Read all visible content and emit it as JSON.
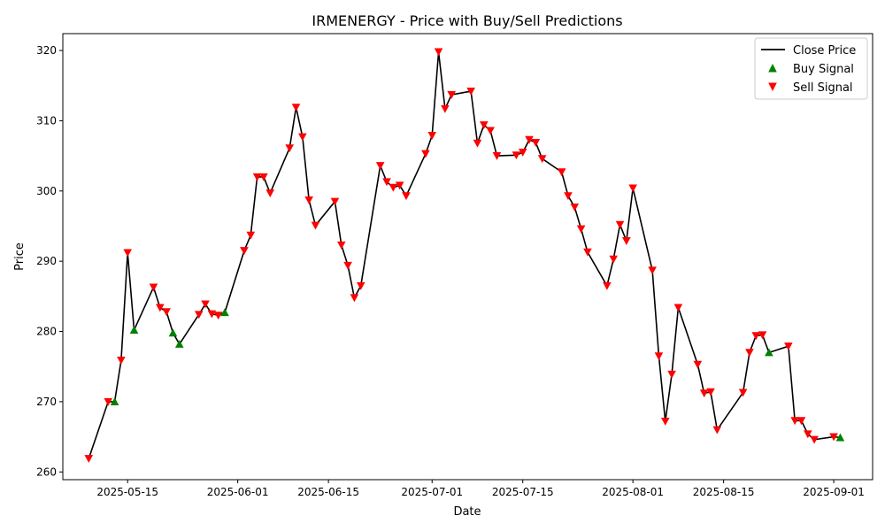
{
  "chart_data": {
    "type": "line",
    "title": "IRMENERGY - Price with Buy/Sell Predictions",
    "xlabel": "Date",
    "ylabel": "Price",
    "x_ticks": [
      "2025-05-15",
      "2025-06-01",
      "2025-06-15",
      "2025-07-01",
      "2025-07-15",
      "2025-08-01",
      "2025-08-15",
      "2025-09-01"
    ],
    "y_ticks": [
      260,
      270,
      280,
      290,
      300,
      310,
      320
    ],
    "ylim": [
      258.9,
      322.4
    ],
    "xlim": [
      "2025-05-05",
      "2025-09-07"
    ],
    "grid": false,
    "legend_position": "top-right",
    "colors": {
      "line": "#000000",
      "buy": "#008000",
      "sell": "#ff0000"
    },
    "series": [
      {
        "name": "Close Price",
        "kind": "line",
        "points": [
          [
            "2025-05-09",
            261.9
          ],
          [
            "2025-05-12",
            270.0
          ],
          [
            "2025-05-13",
            270.0
          ],
          [
            "2025-05-14",
            275.9
          ],
          [
            "2025-05-15",
            291.2
          ],
          [
            "2025-05-16",
            280.2
          ],
          [
            "2025-05-19",
            286.3
          ],
          [
            "2025-05-20",
            283.4
          ],
          [
            "2025-05-21",
            282.8
          ],
          [
            "2025-05-22",
            279.8
          ],
          [
            "2025-05-23",
            278.2
          ],
          [
            "2025-05-26",
            282.4
          ],
          [
            "2025-05-27",
            283.9
          ],
          [
            "2025-05-28",
            282.5
          ],
          [
            "2025-05-29",
            282.3
          ],
          [
            "2025-05-30",
            282.7
          ],
          [
            "2025-06-02",
            291.5
          ],
          [
            "2025-06-03",
            293.7
          ],
          [
            "2025-06-04",
            302.0
          ],
          [
            "2025-06-05",
            302.0
          ],
          [
            "2025-06-06",
            299.7
          ],
          [
            "2025-06-09",
            306.1
          ],
          [
            "2025-06-10",
            311.9
          ],
          [
            "2025-06-11",
            307.7
          ],
          [
            "2025-06-12",
            298.7
          ],
          [
            "2025-06-13",
            295.1
          ],
          [
            "2025-06-16",
            298.5
          ],
          [
            "2025-06-17",
            292.3
          ],
          [
            "2025-06-18",
            289.4
          ],
          [
            "2025-06-19",
            284.8
          ],
          [
            "2025-06-20",
            286.5
          ],
          [
            "2025-06-23",
            303.6
          ],
          [
            "2025-06-24",
            301.3
          ],
          [
            "2025-06-25",
            300.5
          ],
          [
            "2025-06-26",
            300.8
          ],
          [
            "2025-06-27",
            299.3
          ],
          [
            "2025-06-30",
            305.3
          ],
          [
            "2025-07-01",
            307.9
          ],
          [
            "2025-07-02",
            319.8
          ],
          [
            "2025-07-03",
            311.7
          ],
          [
            "2025-07-04",
            313.7
          ],
          [
            "2025-07-07",
            314.2
          ],
          [
            "2025-07-08",
            306.8
          ],
          [
            "2025-07-09",
            309.4
          ],
          [
            "2025-07-10",
            308.6
          ],
          [
            "2025-07-11",
            305.0
          ],
          [
            "2025-07-14",
            305.1
          ],
          [
            "2025-07-15",
            305.5
          ],
          [
            "2025-07-16",
            307.3
          ],
          [
            "2025-07-17",
            306.9
          ],
          [
            "2025-07-18",
            304.6
          ],
          [
            "2025-07-21",
            302.7
          ],
          [
            "2025-07-22",
            299.3
          ],
          [
            "2025-07-23",
            297.7
          ],
          [
            "2025-07-24",
            294.6
          ],
          [
            "2025-07-25",
            291.3
          ],
          [
            "2025-07-28",
            286.5
          ],
          [
            "2025-07-29",
            290.3
          ],
          [
            "2025-07-30",
            295.2
          ],
          [
            "2025-07-31",
            292.9
          ],
          [
            "2025-08-01",
            300.4
          ],
          [
            "2025-08-04",
            288.7
          ],
          [
            "2025-08-05",
            276.5
          ],
          [
            "2025-08-06",
            267.2
          ],
          [
            "2025-08-07",
            273.9
          ],
          [
            "2025-08-08",
            283.4
          ],
          [
            "2025-08-11",
            275.3
          ],
          [
            "2025-08-12",
            271.2
          ],
          [
            "2025-08-13",
            271.4
          ],
          [
            "2025-08-14",
            266.0
          ],
          [
            "2025-08-18",
            271.3
          ],
          [
            "2025-08-19",
            277.0
          ],
          [
            "2025-08-20",
            279.4
          ],
          [
            "2025-08-21",
            279.5
          ],
          [
            "2025-08-22",
            277.0
          ],
          [
            "2025-08-25",
            277.9
          ],
          [
            "2025-08-26",
            267.3
          ],
          [
            "2025-08-27",
            267.3
          ],
          [
            "2025-08-28",
            265.4
          ],
          [
            "2025-08-29",
            264.6
          ],
          [
            "2025-09-01",
            265.0
          ],
          [
            "2025-09-02",
            264.9
          ]
        ]
      },
      {
        "name": "Buy Signal",
        "kind": "scatter",
        "marker": "triangle-up",
        "points": [
          [
            "2025-05-13",
            270.0
          ],
          [
            "2025-05-16",
            280.2
          ],
          [
            "2025-05-22",
            279.8
          ],
          [
            "2025-05-23",
            278.2
          ],
          [
            "2025-05-30",
            282.7
          ],
          [
            "2025-08-22",
            277.0
          ],
          [
            "2025-09-02",
            264.9
          ]
        ]
      },
      {
        "name": "Sell Signal",
        "kind": "scatter",
        "marker": "triangle-down",
        "points": [
          [
            "2025-05-09",
            261.9
          ],
          [
            "2025-05-12",
            270.0
          ],
          [
            "2025-05-14",
            275.9
          ],
          [
            "2025-05-15",
            291.2
          ],
          [
            "2025-05-19",
            286.3
          ],
          [
            "2025-05-20",
            283.4
          ],
          [
            "2025-05-21",
            282.8
          ],
          [
            "2025-05-26",
            282.4
          ],
          [
            "2025-05-27",
            283.9
          ],
          [
            "2025-05-28",
            282.5
          ],
          [
            "2025-05-29",
            282.3
          ],
          [
            "2025-06-02",
            291.5
          ],
          [
            "2025-06-03",
            293.7
          ],
          [
            "2025-06-04",
            302.0
          ],
          [
            "2025-06-05",
            302.0
          ],
          [
            "2025-06-06",
            299.7
          ],
          [
            "2025-06-09",
            306.1
          ],
          [
            "2025-06-10",
            311.9
          ],
          [
            "2025-06-11",
            307.7
          ],
          [
            "2025-06-12",
            298.7
          ],
          [
            "2025-06-13",
            295.1
          ],
          [
            "2025-06-16",
            298.5
          ],
          [
            "2025-06-17",
            292.3
          ],
          [
            "2025-06-18",
            289.4
          ],
          [
            "2025-06-19",
            284.8
          ],
          [
            "2025-06-20",
            286.5
          ],
          [
            "2025-06-23",
            303.6
          ],
          [
            "2025-06-24",
            301.3
          ],
          [
            "2025-06-25",
            300.5
          ],
          [
            "2025-06-26",
            300.8
          ],
          [
            "2025-06-27",
            299.3
          ],
          [
            "2025-06-30",
            305.3
          ],
          [
            "2025-07-01",
            307.9
          ],
          [
            "2025-07-02",
            319.8
          ],
          [
            "2025-07-03",
            311.7
          ],
          [
            "2025-07-04",
            313.7
          ],
          [
            "2025-07-07",
            314.2
          ],
          [
            "2025-07-08",
            306.8
          ],
          [
            "2025-07-09",
            309.4
          ],
          [
            "2025-07-10",
            308.6
          ],
          [
            "2025-07-11",
            305.0
          ],
          [
            "2025-07-14",
            305.1
          ],
          [
            "2025-07-15",
            305.5
          ],
          [
            "2025-07-16",
            307.3
          ],
          [
            "2025-07-17",
            306.9
          ],
          [
            "2025-07-18",
            304.6
          ],
          [
            "2025-07-21",
            302.7
          ],
          [
            "2025-07-22",
            299.3
          ],
          [
            "2025-07-23",
            297.7
          ],
          [
            "2025-07-24",
            294.6
          ],
          [
            "2025-07-25",
            291.3
          ],
          [
            "2025-07-28",
            286.5
          ],
          [
            "2025-07-29",
            290.3
          ],
          [
            "2025-07-30",
            295.2
          ],
          [
            "2025-07-31",
            292.9
          ],
          [
            "2025-08-01",
            300.4
          ],
          [
            "2025-08-04",
            288.7
          ],
          [
            "2025-08-05",
            276.5
          ],
          [
            "2025-08-06",
            267.2
          ],
          [
            "2025-08-07",
            273.9
          ],
          [
            "2025-08-08",
            283.4
          ],
          [
            "2025-08-11",
            275.3
          ],
          [
            "2025-08-12",
            271.2
          ],
          [
            "2025-08-13",
            271.4
          ],
          [
            "2025-08-14",
            266.0
          ],
          [
            "2025-08-18",
            271.3
          ],
          [
            "2025-08-19",
            277.0
          ],
          [
            "2025-08-20",
            279.4
          ],
          [
            "2025-08-21",
            279.5
          ],
          [
            "2025-08-25",
            277.9
          ],
          [
            "2025-08-26",
            267.3
          ],
          [
            "2025-08-27",
            267.3
          ],
          [
            "2025-08-28",
            265.4
          ],
          [
            "2025-08-29",
            264.6
          ],
          [
            "2025-09-01",
            265.0
          ]
        ]
      }
    ]
  }
}
